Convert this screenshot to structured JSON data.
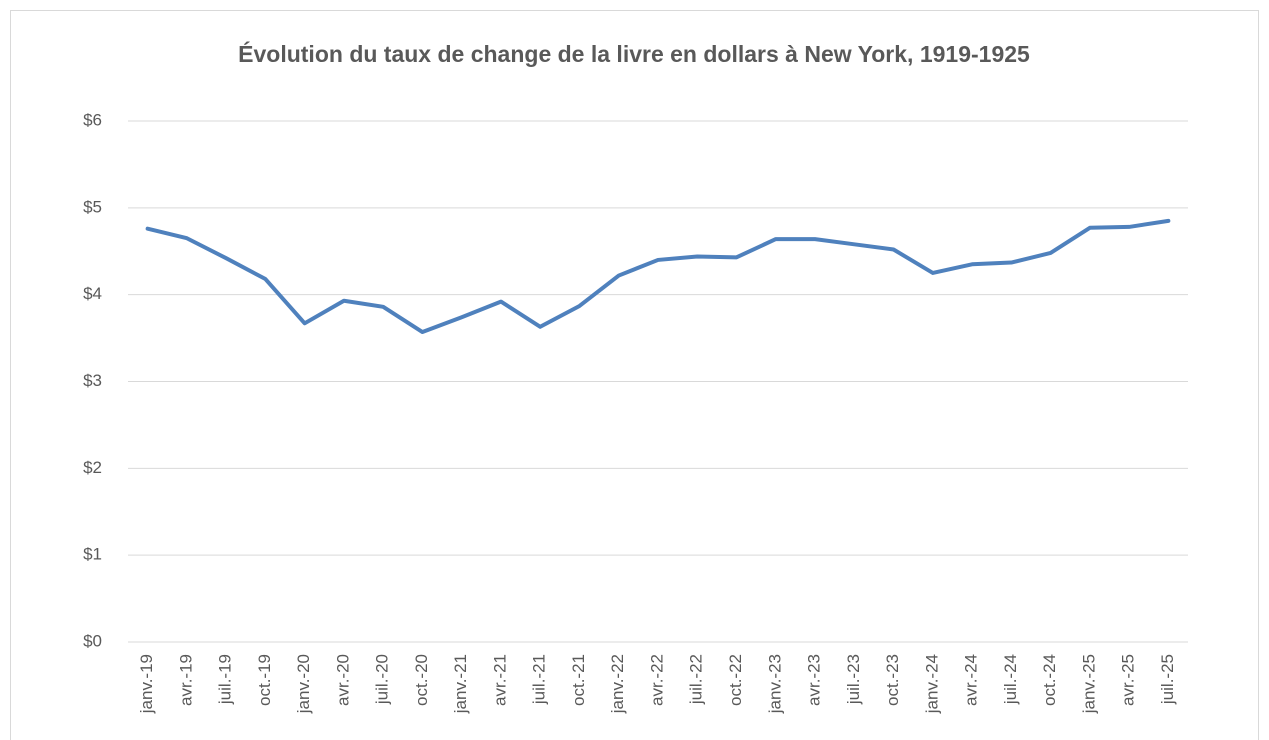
{
  "chart_data": {
    "type": "line",
    "title": "Évolution du taux de change de la livre en dollars à New York, 1919-1925",
    "categories": [
      "janv.-19",
      "avr.-19",
      "juil.-19",
      "oct.-19",
      "janv.-20",
      "avr.-20",
      "juil.-20",
      "oct.-20",
      "janv.-21",
      "avr.-21",
      "juil.-21",
      "oct.-21",
      "janv.-22",
      "avr.-22",
      "juil.-22",
      "oct.-22",
      "janv.-23",
      "avr.-23",
      "juil.-23",
      "oct.-23",
      "janv.-24",
      "avr.-24",
      "juil.-24",
      "oct.-24",
      "janv.-25",
      "avr.-25",
      "juil.-25"
    ],
    "series": [
      {
        "color": "#4f81bd",
        "values": [
          4.76,
          4.65,
          4.42,
          4.18,
          3.67,
          3.93,
          3.86,
          3.57,
          3.74,
          3.92,
          3.63,
          3.87,
          4.22,
          4.4,
          4.44,
          4.43,
          4.64,
          4.64,
          4.58,
          4.52,
          4.25,
          4.35,
          4.37,
          4.48,
          4.77,
          4.78,
          4.85
        ]
      }
    ],
    "ylim": [
      0,
      6
    ],
    "yticks": [
      {
        "value": 0,
        "label": "$0"
      },
      {
        "value": 1,
        "label": "$1"
      },
      {
        "value": 2,
        "label": "$2"
      },
      {
        "value": 3,
        "label": "$3"
      },
      {
        "value": 4,
        "label": "$4"
      },
      {
        "value": 5,
        "label": "$5"
      },
      {
        "value": 6,
        "label": "$6"
      }
    ],
    "grid": true
  }
}
